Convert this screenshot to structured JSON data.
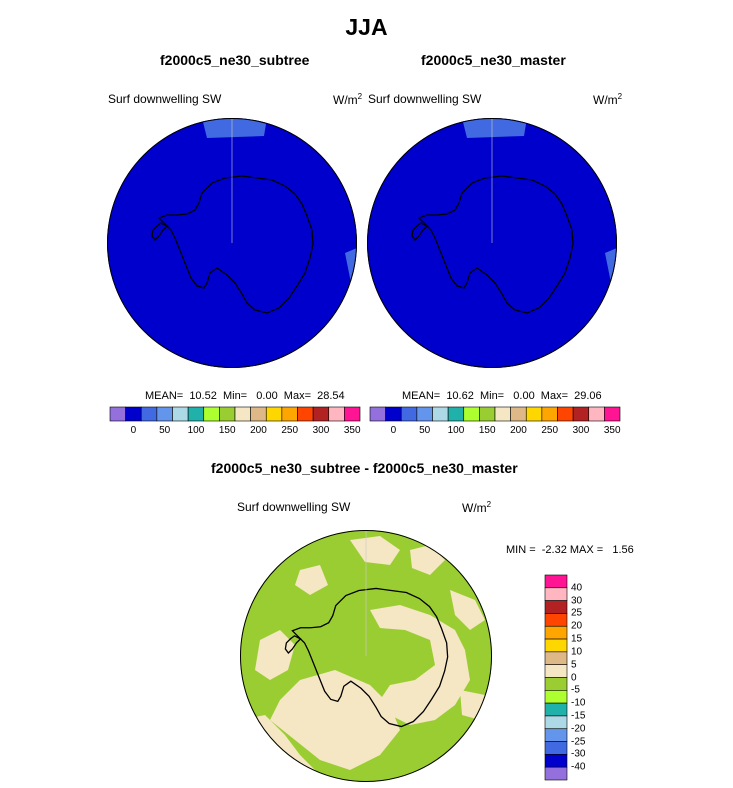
{
  "title": "JJA",
  "panels": [
    {
      "subtitle": "f2000c5_ne30_subtree",
      "variable": "Surf downwelling SW",
      "units_base": "W/m",
      "units_exp": "2",
      "stats": "MEAN=  10.52  Min=   0.00  Max=  28.54",
      "map_fill": "#0000cd",
      "edge_fill": "#4169e1"
    },
    {
      "subtitle": "f2000c5_ne30_master",
      "variable": "Surf downwelling SW",
      "units_base": "W/m",
      "units_exp": "2",
      "stats": "MEAN=  10.62  Min=   0.00  Max=  29.06",
      "map_fill": "#0000cd",
      "edge_fill": "#4169e1"
    }
  ],
  "colorbar": {
    "colors": [
      "#9370db",
      "#0000cd",
      "#4169e1",
      "#6495ed",
      "#add8e6",
      "#20b2aa",
      "#adff2f",
      "#9acd32",
      "#f5e6c4",
      "#deb887",
      "#ffd700",
      "#ffa500",
      "#ff4500",
      "#b22222",
      "#ffb6c1",
      "#ff1493"
    ],
    "ticks": [
      "0",
      "50",
      "100",
      "150",
      "200",
      "250",
      "300",
      "350"
    ]
  },
  "diff": {
    "subtitle": "f2000c5_ne30_subtree - f2000c5_ne30_master",
    "variable": "Surf downwelling SW",
    "units_base": "W/m",
    "units_exp": "2",
    "stats": "MIN =  -2.32 MAX =   1.56",
    "fill_low": "#9acd32",
    "fill_high": "#f5e6c4",
    "colorbar_colors": [
      "#ff1493",
      "#ffb6c1",
      "#b22222",
      "#ff4500",
      "#ffa500",
      "#ffd700",
      "#deb887",
      "#f5e6c4",
      "#9acd32",
      "#adff2f",
      "#20b2aa",
      "#add8e6",
      "#6495ed",
      "#4169e1",
      "#0000cd",
      "#9370db"
    ],
    "colorbar_ticks": [
      "40",
      "30",
      "25",
      "20",
      "15",
      "10",
      "5",
      "0",
      "-5",
      "-10",
      "-15",
      "-20",
      "-25",
      "-30",
      "-40"
    ]
  },
  "chart_data": [
    {
      "type": "heatmap",
      "title": "f2000c5_ne30_subtree",
      "variable": "Surf downwelling SW",
      "units": "W/m2",
      "projection": "south polar stereographic",
      "mean": 10.52,
      "min": 0.0,
      "max": 28.54,
      "levels": [
        0,
        25,
        50,
        75,
        100,
        125,
        150,
        175,
        200,
        225,
        250,
        275,
        300,
        325,
        350
      ]
    },
    {
      "type": "heatmap",
      "title": "f2000c5_ne30_master",
      "variable": "Surf downwelling SW",
      "units": "W/m2",
      "projection": "south polar stereographic",
      "mean": 10.62,
      "min": 0.0,
      "max": 29.06,
      "levels": [
        0,
        25,
        50,
        75,
        100,
        125,
        150,
        175,
        200,
        225,
        250,
        275,
        300,
        325,
        350
      ]
    },
    {
      "type": "heatmap",
      "title": "f2000c5_ne30_subtree - f2000c5_ne30_master",
      "variable": "Surf downwelling SW",
      "units": "W/m2",
      "projection": "south polar stereographic",
      "min": -2.32,
      "max": 1.56,
      "levels": [
        -40,
        -30,
        -25,
        -20,
        -15,
        -10,
        -5,
        0,
        5,
        10,
        15,
        20,
        25,
        30,
        40
      ]
    }
  ]
}
